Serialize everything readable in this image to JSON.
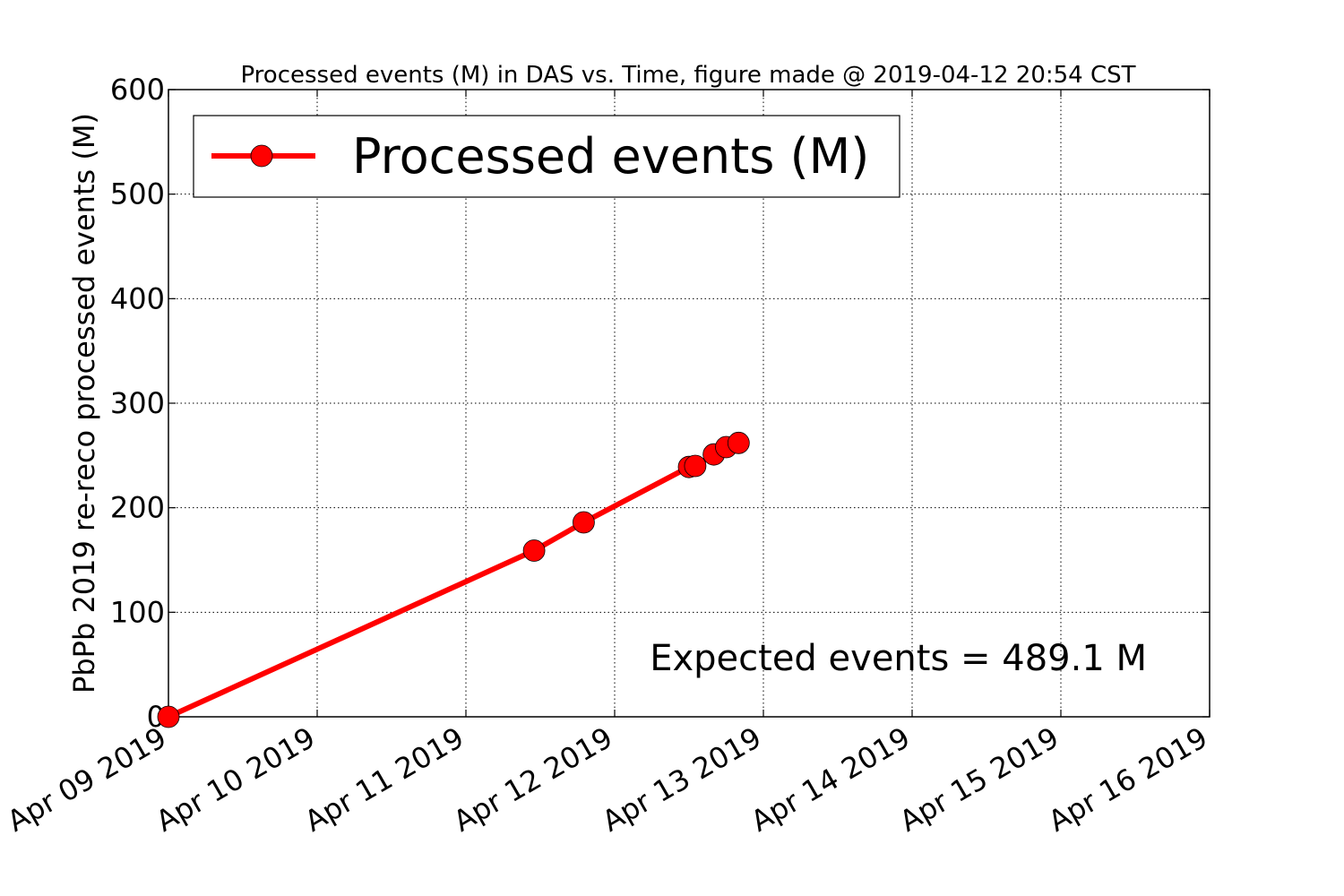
{
  "chart_data": {
    "type": "line",
    "title": "Processed events (M) in DAS vs. Time, figure made @ 2019-04-12 20:54 CST",
    "xlabel": "",
    "ylabel": "PbPb 2019 re-reco processed events (M)",
    "x_tick_labels": [
      "Apr 09 2019",
      "Apr 10 2019",
      "Apr 11 2019",
      "Apr 12 2019",
      "Apr 13 2019",
      "Apr 14 2019",
      "Apr 15 2019",
      "Apr 16 2019"
    ],
    "xlim": [
      "2019-04-09T00:00",
      "2019-04-16T00:00"
    ],
    "ylim": [
      0,
      600
    ],
    "y_ticks": [
      0,
      100,
      200,
      300,
      400,
      500,
      600
    ],
    "grid": true,
    "legend_position": "top-left",
    "series": [
      {
        "name": "Processed events (M)",
        "color": "#ff0000",
        "points": [
          {
            "x": "2019-04-09T00:00",
            "y": 0
          },
          {
            "x": "2019-04-11T11:00",
            "y": 159
          },
          {
            "x": "2019-04-11T19:00",
            "y": 186
          },
          {
            "x": "2019-04-12T12:00",
            "y": 239
          },
          {
            "x": "2019-04-12T13:00",
            "y": 240
          },
          {
            "x": "2019-04-12T16:00",
            "y": 251
          },
          {
            "x": "2019-04-12T18:00",
            "y": 258
          },
          {
            "x": "2019-04-12T20:00",
            "y": 262
          }
        ]
      }
    ],
    "annotations": [
      {
        "text": "Expected events = 489.1 M"
      }
    ]
  }
}
